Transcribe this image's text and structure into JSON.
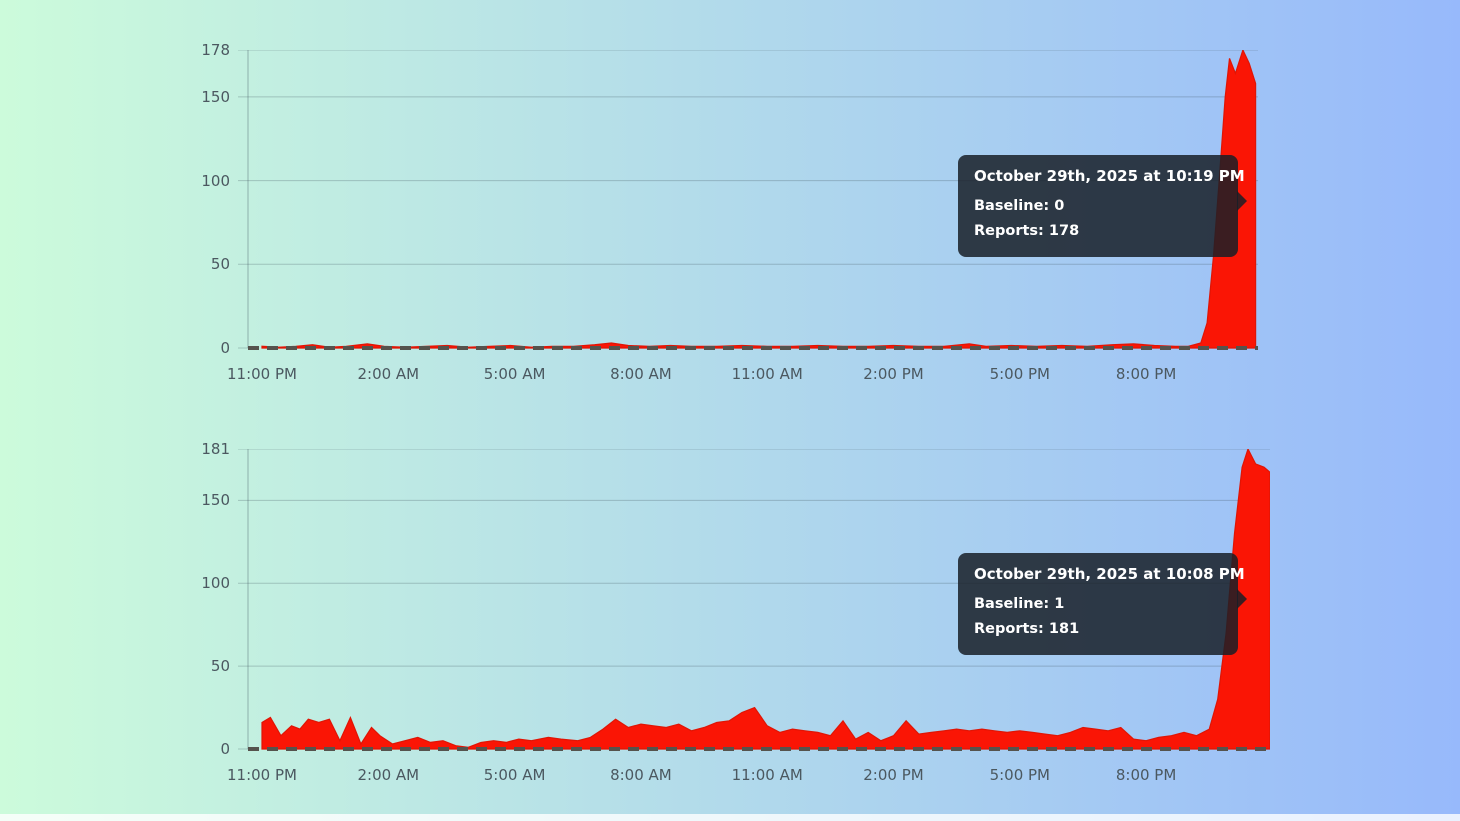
{
  "page": {
    "background": {
      "gradient_left": "#ccfbdb",
      "gradient_right": "#97b9fb"
    }
  },
  "colors": {
    "area_fill": "#fa1505",
    "area_stroke": "#e01505",
    "baseline_dash": "#55534d",
    "gridline": "rgba(60,80,90,0.28)",
    "axis_line": "rgba(60,80,90,0.4)",
    "tick_text": "#4b5860",
    "tooltip_bg": "rgba(23,30,39,0.85)"
  },
  "chart_data": [
    {
      "type": "area",
      "series_name": "Reports",
      "x_start_label": "11:00 PM",
      "x_tick_hours": [
        0,
        3,
        6,
        9,
        12,
        15,
        18,
        21
      ],
      "x_tick_labels": [
        "11:00 PM",
        "2:00 AM",
        "5:00 AM",
        "8:00 AM",
        "11:00 AM",
        "2:00 PM",
        "5:00 PM",
        "8:00 PM"
      ],
      "y_ticks": [
        178,
        150,
        100,
        50,
        0
      ],
      "ylim": [
        0,
        178
      ],
      "xlim_hours": [
        0,
        23.6
      ],
      "baseline_value": 0,
      "peak_value": 178,
      "points": [
        [
          0,
          1
        ],
        [
          0.4,
          0.5
        ],
        [
          0.8,
          1
        ],
        [
          1.2,
          2
        ],
        [
          1.6,
          0.5
        ],
        [
          2,
          1
        ],
        [
          2.5,
          2.5
        ],
        [
          2.9,
          1
        ],
        [
          3.4,
          0.5
        ],
        [
          3.9,
          1
        ],
        [
          4.4,
          1.5
        ],
        [
          4.9,
          0.5
        ],
        [
          5.4,
          1
        ],
        [
          5.9,
          1.5
        ],
        [
          6.4,
          0.5
        ],
        [
          6.9,
          1
        ],
        [
          7.4,
          1
        ],
        [
          7.9,
          2
        ],
        [
          8.3,
          3
        ],
        [
          8.7,
          1.5
        ],
        [
          9.2,
          1
        ],
        [
          9.7,
          1.5
        ],
        [
          10.2,
          1
        ],
        [
          10.8,
          1
        ],
        [
          11.4,
          1.5
        ],
        [
          12,
          1
        ],
        [
          12.6,
          1
        ],
        [
          13.2,
          1.5
        ],
        [
          13.8,
          1
        ],
        [
          14.4,
          1
        ],
        [
          15,
          1.5
        ],
        [
          15.6,
          1
        ],
        [
          16.2,
          1
        ],
        [
          16.8,
          2.5
        ],
        [
          17.2,
          1
        ],
        [
          17.8,
          1.5
        ],
        [
          18.4,
          1
        ],
        [
          19,
          1.5
        ],
        [
          19.6,
          1
        ],
        [
          20.2,
          2
        ],
        [
          20.7,
          2.5
        ],
        [
          21.2,
          1.5
        ],
        [
          21.7,
          1
        ],
        [
          22,
          1
        ],
        [
          22.3,
          3
        ],
        [
          22.45,
          15
        ],
        [
          22.6,
          55
        ],
        [
          22.75,
          105
        ],
        [
          22.88,
          150
        ],
        [
          22.98,
          173
        ],
        [
          23.12,
          164
        ],
        [
          23.3,
          178
        ],
        [
          23.45,
          170
        ],
        [
          23.6,
          158
        ]
      ],
      "tooltip": {
        "title": "October 29th, 2025 at 10:19 PM",
        "lines": [
          "Baseline: 0",
          "Reports: 178"
        ]
      }
    },
    {
      "type": "area",
      "series_name": "Reports",
      "x_start_label": "11:00 PM",
      "x_tick_hours": [
        0,
        3,
        6,
        9,
        12,
        15,
        18,
        21
      ],
      "x_tick_labels": [
        "11:00 PM",
        "2:00 AM",
        "5:00 AM",
        "8:00 AM",
        "11:00 AM",
        "2:00 PM",
        "5:00 PM",
        "8:00 PM"
      ],
      "y_ticks": [
        181,
        150,
        100,
        50,
        0
      ],
      "ylim": [
        0,
        181
      ],
      "xlim_hours": [
        0,
        23.94
      ],
      "baseline_value": 1,
      "peak_value": 181,
      "points": [
        [
          0,
          16
        ],
        [
          0.2,
          19
        ],
        [
          0.45,
          8
        ],
        [
          0.7,
          14
        ],
        [
          0.9,
          12
        ],
        [
          1.1,
          18
        ],
        [
          1.35,
          16
        ],
        [
          1.6,
          18
        ],
        [
          1.85,
          5
        ],
        [
          2.1,
          19
        ],
        [
          2.35,
          3
        ],
        [
          2.6,
          13
        ],
        [
          2.8,
          8
        ],
        [
          3.1,
          3
        ],
        [
          3.4,
          5
        ],
        [
          3.7,
          7
        ],
        [
          4,
          4
        ],
        [
          4.3,
          5
        ],
        [
          4.6,
          2
        ],
        [
          4.9,
          1
        ],
        [
          5.2,
          4
        ],
        [
          5.5,
          5
        ],
        [
          5.8,
          4
        ],
        [
          6.1,
          6
        ],
        [
          6.4,
          5
        ],
        [
          6.8,
          7
        ],
        [
          7.1,
          6
        ],
        [
          7.5,
          5
        ],
        [
          7.8,
          7
        ],
        [
          8.1,
          12
        ],
        [
          8.4,
          18
        ],
        [
          8.7,
          13
        ],
        [
          9,
          15
        ],
        [
          9.3,
          14
        ],
        [
          9.6,
          13
        ],
        [
          9.9,
          15
        ],
        [
          10.2,
          11
        ],
        [
          10.5,
          13
        ],
        [
          10.8,
          16
        ],
        [
          11.1,
          17
        ],
        [
          11.4,
          22
        ],
        [
          11.7,
          25
        ],
        [
          12,
          14
        ],
        [
          12.3,
          10
        ],
        [
          12.6,
          12
        ],
        [
          12.9,
          11
        ],
        [
          13.2,
          10
        ],
        [
          13.5,
          8
        ],
        [
          13.8,
          17
        ],
        [
          14.1,
          6
        ],
        [
          14.4,
          10
        ],
        [
          14.7,
          5
        ],
        [
          15,
          8
        ],
        [
          15.3,
          17
        ],
        [
          15.6,
          9
        ],
        [
          15.9,
          10
        ],
        [
          16.2,
          11
        ],
        [
          16.5,
          12
        ],
        [
          16.8,
          11
        ],
        [
          17.1,
          12
        ],
        [
          17.4,
          11
        ],
        [
          17.7,
          10
        ],
        [
          18,
          11
        ],
        [
          18.3,
          10
        ],
        [
          18.6,
          9
        ],
        [
          18.9,
          8
        ],
        [
          19.2,
          10
        ],
        [
          19.5,
          13
        ],
        [
          19.8,
          12
        ],
        [
          20.1,
          11
        ],
        [
          20.4,
          13
        ],
        [
          20.7,
          6
        ],
        [
          21,
          5
        ],
        [
          21.3,
          7
        ],
        [
          21.6,
          8
        ],
        [
          21.9,
          10
        ],
        [
          22.2,
          8
        ],
        [
          22.5,
          12
        ],
        [
          22.7,
          30
        ],
        [
          22.9,
          70
        ],
        [
          23.1,
          130
        ],
        [
          23.28,
          170
        ],
        [
          23.42,
          181
        ],
        [
          23.6,
          172
        ],
        [
          23.8,
          170
        ],
        [
          23.94,
          167
        ]
      ],
      "tooltip": {
        "title": "October 29th, 2025 at 10:08 PM",
        "lines": [
          "Baseline: 1",
          "Reports: 181"
        ]
      }
    }
  ]
}
